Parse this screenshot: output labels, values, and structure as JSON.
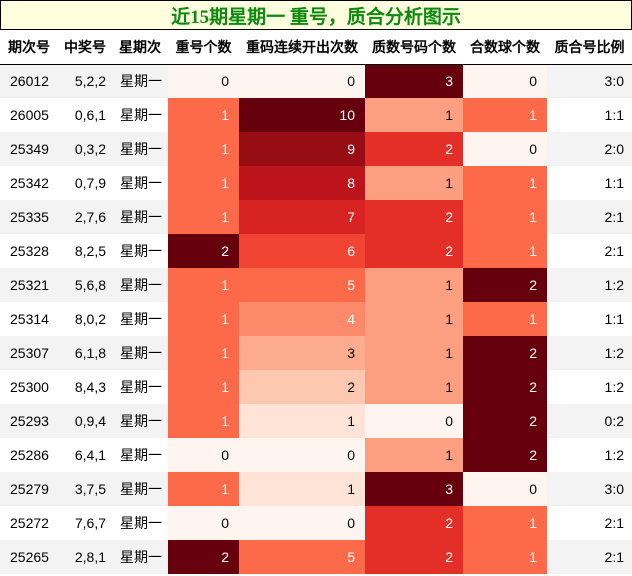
{
  "title": "近15期星期一 重号，质合分析图示",
  "colors": {
    "title_bg": "#ffffe0",
    "title_text": "#0b8a0b",
    "row_odd": "#f3f3f3",
    "row_even": "#ffffff"
  },
  "columns": [
    "期次号",
    "中奖号",
    "星期次",
    "重号个数",
    "重码连续开出次数",
    "质数号码个数",
    "合数球个数",
    "质合号比例"
  ],
  "rows": [
    {
      "issue": "26012",
      "numbers": "5,2,2",
      "weekday": "星期一",
      "repeat": "0",
      "repeat_streak": "0",
      "prime": "3",
      "composite": "0",
      "ratio": "3:0"
    },
    {
      "issue": "26005",
      "numbers": "0,6,1",
      "weekday": "星期一",
      "repeat": "1",
      "repeat_streak": "10",
      "prime": "1",
      "composite": "1",
      "ratio": "1:1"
    },
    {
      "issue": "25349",
      "numbers": "0,3,2",
      "weekday": "星期一",
      "repeat": "1",
      "repeat_streak": "9",
      "prime": "2",
      "composite": "0",
      "ratio": "2:0"
    },
    {
      "issue": "25342",
      "numbers": "0,7,9",
      "weekday": "星期一",
      "repeat": "1",
      "repeat_streak": "8",
      "prime": "1",
      "composite": "1",
      "ratio": "1:1"
    },
    {
      "issue": "25335",
      "numbers": "2,7,6",
      "weekday": "星期一",
      "repeat": "1",
      "repeat_streak": "7",
      "prime": "2",
      "composite": "1",
      "ratio": "2:1"
    },
    {
      "issue": "25328",
      "numbers": "8,2,5",
      "weekday": "星期一",
      "repeat": "2",
      "repeat_streak": "6",
      "prime": "2",
      "composite": "1",
      "ratio": "2:1"
    },
    {
      "issue": "25321",
      "numbers": "5,6,8",
      "weekday": "星期一",
      "repeat": "1",
      "repeat_streak": "5",
      "prime": "1",
      "composite": "2",
      "ratio": "1:2"
    },
    {
      "issue": "25314",
      "numbers": "8,0,2",
      "weekday": "星期一",
      "repeat": "1",
      "repeat_streak": "4",
      "prime": "1",
      "composite": "1",
      "ratio": "1:1"
    },
    {
      "issue": "25307",
      "numbers": "6,1,8",
      "weekday": "星期一",
      "repeat": "1",
      "repeat_streak": "3",
      "prime": "1",
      "composite": "2",
      "ratio": "1:2"
    },
    {
      "issue": "25300",
      "numbers": "8,4,3",
      "weekday": "星期一",
      "repeat": "1",
      "repeat_streak": "2",
      "prime": "1",
      "composite": "2",
      "ratio": "1:2"
    },
    {
      "issue": "25293",
      "numbers": "0,9,4",
      "weekday": "星期一",
      "repeat": "1",
      "repeat_streak": "1",
      "prime": "0",
      "composite": "2",
      "ratio": "0:2"
    },
    {
      "issue": "25286",
      "numbers": "6,4,1",
      "weekday": "星期一",
      "repeat": "0",
      "repeat_streak": "0",
      "prime": "1",
      "composite": "2",
      "ratio": "1:2"
    },
    {
      "issue": "25279",
      "numbers": "3,7,5",
      "weekday": "星期一",
      "repeat": "1",
      "repeat_streak": "1",
      "prime": "3",
      "composite": "0",
      "ratio": "3:0"
    },
    {
      "issue": "25272",
      "numbers": "7,6,7",
      "weekday": "星期一",
      "repeat": "0",
      "repeat_streak": "0",
      "prime": "2",
      "composite": "1",
      "ratio": "2:1"
    },
    {
      "issue": "25265",
      "numbers": "2,8,1",
      "weekday": "星期一",
      "repeat": "2",
      "repeat_streak": "5",
      "prime": "2",
      "composite": "1",
      "ratio": "2:1"
    }
  ],
  "heat_scales": {
    "repeat": {
      "0": [
        "#fff5f0",
        "#000"
      ],
      "1": [
        "#fc6a4a",
        "#fff"
      ],
      "2": [
        "#67000d",
        "#fff"
      ]
    },
    "repeat_streak": {
      "0": [
        "#fff5f0",
        "#000"
      ],
      "1": [
        "#fee3d6",
        "#000"
      ],
      "2": [
        "#fcc8b0",
        "#000"
      ],
      "3": [
        "#fcab8f",
        "#000"
      ],
      "4": [
        "#fc8a6a",
        "#fff"
      ],
      "5": [
        "#fc6a4a",
        "#fff"
      ],
      "6": [
        "#f14432",
        "#fff"
      ],
      "7": [
        "#d72322",
        "#fff"
      ],
      "8": [
        "#bc141a",
        "#fff"
      ],
      "9": [
        "#980c13",
        "#fff"
      ],
      "10": [
        "#67000d",
        "#fff"
      ]
    },
    "prime": {
      "0": [
        "#fff5f0",
        "#000"
      ],
      "1": [
        "#fc9f81",
        "#000"
      ],
      "2": [
        "#e32f27",
        "#fff"
      ],
      "3": [
        "#67000d",
        "#fff"
      ]
    },
    "composite": {
      "0": [
        "#fff5f0",
        "#000"
      ],
      "1": [
        "#fc6a4a",
        "#fff"
      ],
      "2": [
        "#67000d",
        "#fff"
      ]
    }
  }
}
